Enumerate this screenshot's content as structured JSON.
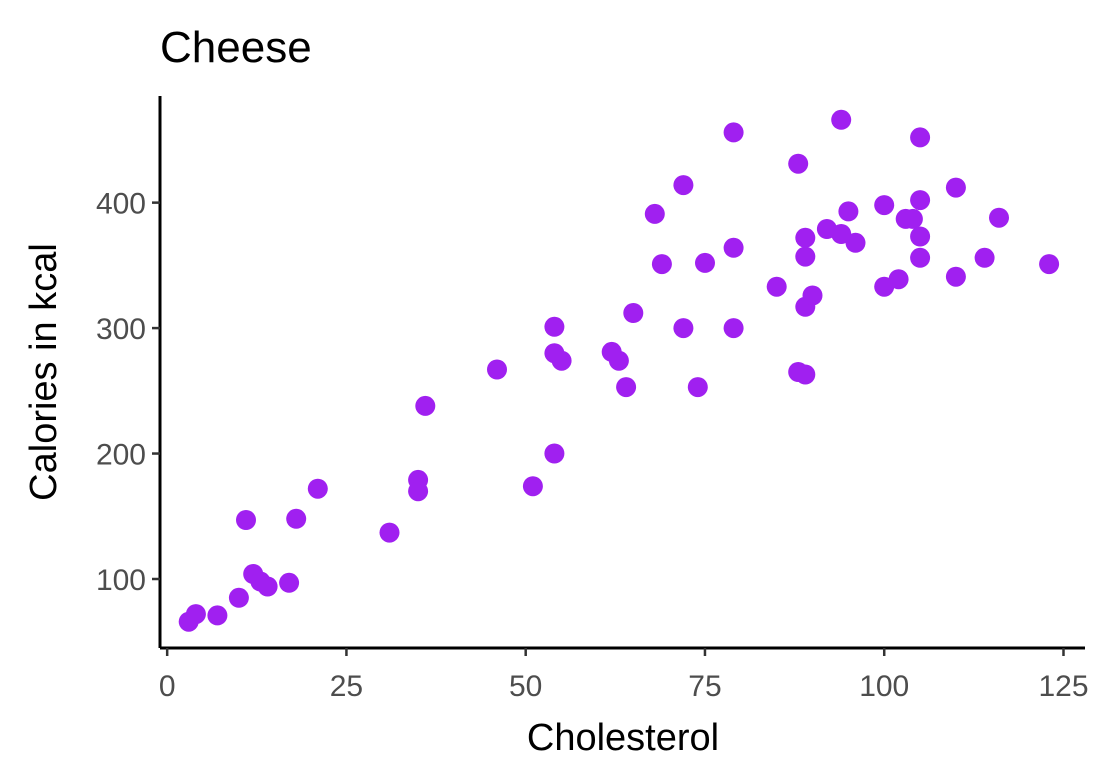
{
  "chart_data": {
    "type": "scatter",
    "title": "Cheese",
    "xlabel": "Cholesterol",
    "ylabel": "Calories in kcal",
    "xlim": [
      -1,
      128
    ],
    "ylim": [
      45,
      485
    ],
    "x_ticks": [
      0,
      25,
      50,
      75,
      100,
      125
    ],
    "y_ticks": [
      100,
      200,
      300,
      400
    ],
    "grid": false,
    "legend": "none",
    "point_color": "#A020F0",
    "series": [
      {
        "points": [
          [
            3,
            66
          ],
          [
            4,
            72
          ],
          [
            7,
            71
          ],
          [
            10,
            85
          ],
          [
            11,
            147
          ],
          [
            12,
            104
          ],
          [
            13,
            98
          ],
          [
            14,
            94
          ],
          [
            17,
            97
          ],
          [
            18,
            148
          ],
          [
            21,
            172
          ],
          [
            31,
            137
          ],
          [
            35,
            179
          ],
          [
            35,
            170
          ],
          [
            36,
            238
          ],
          [
            46,
            267
          ],
          [
            51,
            174
          ],
          [
            54,
            301
          ],
          [
            54,
            280
          ],
          [
            54,
            200
          ],
          [
            55,
            274
          ],
          [
            62,
            281
          ],
          [
            63,
            274
          ],
          [
            64,
            253
          ],
          [
            65,
            312
          ],
          [
            68,
            391
          ],
          [
            69,
            351
          ],
          [
            72,
            414
          ],
          [
            72,
            300
          ],
          [
            74,
            253
          ],
          [
            75,
            352
          ],
          [
            79,
            456
          ],
          [
            79,
            364
          ],
          [
            79,
            300
          ],
          [
            85,
            333
          ],
          [
            88,
            431
          ],
          [
            88,
            265
          ],
          [
            89,
            263
          ],
          [
            89,
            372
          ],
          [
            89,
            357
          ],
          [
            89,
            317
          ],
          [
            90,
            326
          ],
          [
            92,
            379
          ],
          [
            94,
            466
          ],
          [
            94,
            375
          ],
          [
            95,
            393
          ],
          [
            96,
            368
          ],
          [
            100,
            398
          ],
          [
            100,
            333
          ],
          [
            102,
            339
          ],
          [
            103,
            387
          ],
          [
            104,
            387
          ],
          [
            105,
            452
          ],
          [
            105,
            402
          ],
          [
            105,
            373
          ],
          [
            105,
            356
          ],
          [
            110,
            412
          ],
          [
            110,
            341
          ],
          [
            114,
            356
          ],
          [
            116,
            388
          ],
          [
            123,
            351
          ]
        ]
      }
    ]
  }
}
